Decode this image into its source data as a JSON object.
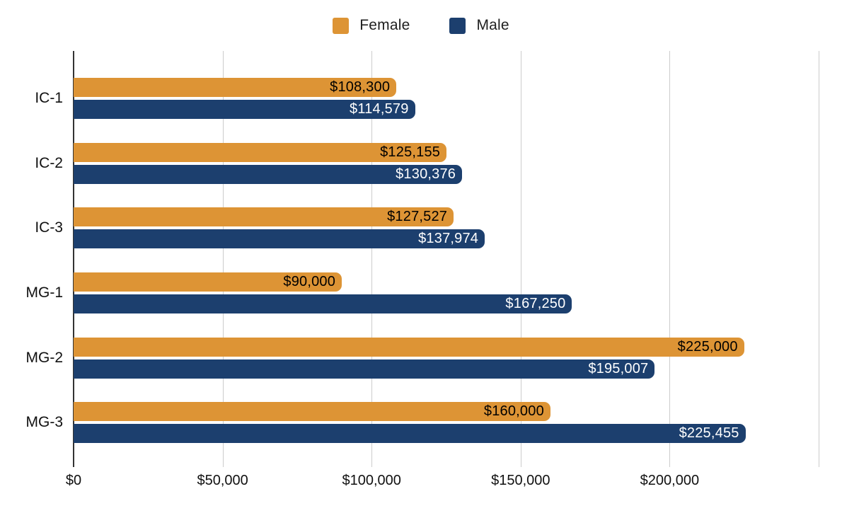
{
  "legend": {
    "items": [
      {
        "label": "Female",
        "color": "#DD9435"
      },
      {
        "label": "Male",
        "color": "#1C3F6E"
      }
    ]
  },
  "chart_data": {
    "type": "bar",
    "orientation": "horizontal",
    "title": "",
    "categories": [
      "IC-1",
      "IC-2",
      "IC-3",
      "MG-1",
      "MG-2",
      "MG-3"
    ],
    "series": [
      {
        "name": "Female",
        "color": "#DD9435",
        "label_text_color": "#000000",
        "values": [
          108300,
          125155,
          127527,
          90000,
          225000,
          160000
        ],
        "value_labels": [
          "$108,300",
          "$125,155",
          "$127,527",
          "$90,000",
          "$225,000",
          "$160,000"
        ]
      },
      {
        "name": "Male",
        "color": "#1C3F6E",
        "label_text_color": "#FFFFFF",
        "values": [
          114579,
          130376,
          137974,
          167250,
          195007,
          225455
        ],
        "value_labels": [
          "$114,579",
          "$130,376",
          "$137,974",
          "$167,250",
          "$195,007",
          "$225,455"
        ]
      }
    ],
    "x_axis": {
      "ticks": [
        {
          "label": "$0",
          "value": 0
        },
        {
          "label": "$50,000",
          "value": 50000
        },
        {
          "label": "$100,000",
          "value": 100000
        },
        {
          "label": "$150,000",
          "value": 150000
        },
        {
          "label": "$200,000",
          "value": 200000
        }
      ],
      "max": 250000,
      "gridline_step": 50000
    },
    "xlim": [
      0,
      250000
    ],
    "grid": true,
    "legend_position": "top",
    "colors": {
      "gridline": "#cccccc",
      "axis": "#333333",
      "background": "#ffffff"
    }
  }
}
